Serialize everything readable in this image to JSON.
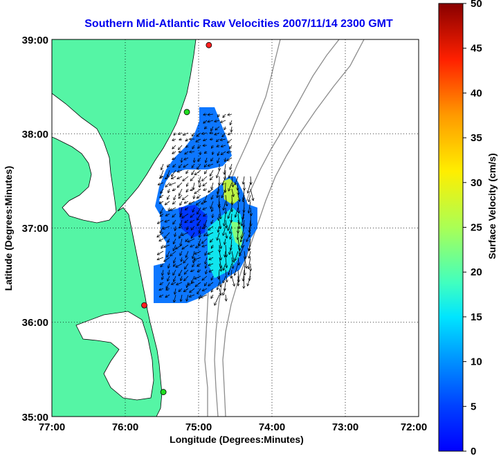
{
  "title": "Southern Mid-Atlantic Raw Velocities 2007/11/14 2300 GMT",
  "x_axis": {
    "label": "Longitude (Degrees:Minutes)",
    "ticks": [
      "77:00",
      "76:00",
      "75:00",
      "74:00",
      "73:00",
      "72:00"
    ],
    "range": [
      -77,
      -72
    ]
  },
  "y_axis": {
    "label": "Latitude (Degrees:Minutes)",
    "ticks": [
      "35:00",
      "36:00",
      "37:00",
      "38:00",
      "39:00"
    ],
    "range": [
      35,
      39
    ]
  },
  "colorbar": {
    "label": "Surface Velocity (cm/s)",
    "ticks": [
      "0",
      "5",
      "10",
      "15",
      "20",
      "25",
      "30",
      "35",
      "40",
      "45",
      "50"
    ],
    "range": [
      0,
      50
    ],
    "colormap": "jet"
  },
  "colors": {
    "land": "#55f5a5",
    "water": "#ffffff",
    "coastline": "#000000",
    "bathymetry": "#8c8c8c",
    "grid": "#000000",
    "title": "#0000ee"
  },
  "grid": "dotted",
  "stations": [
    {
      "lon": -74.86,
      "lat": 38.94,
      "color": "#ff2020"
    },
    {
      "lon": -75.16,
      "lat": 38.23,
      "color": "#22dd22"
    },
    {
      "lon": -75.74,
      "lat": 36.18,
      "color": "#ff2020"
    },
    {
      "lon": -75.48,
      "lat": 35.26,
      "color": "#22dd22"
    }
  ]
}
